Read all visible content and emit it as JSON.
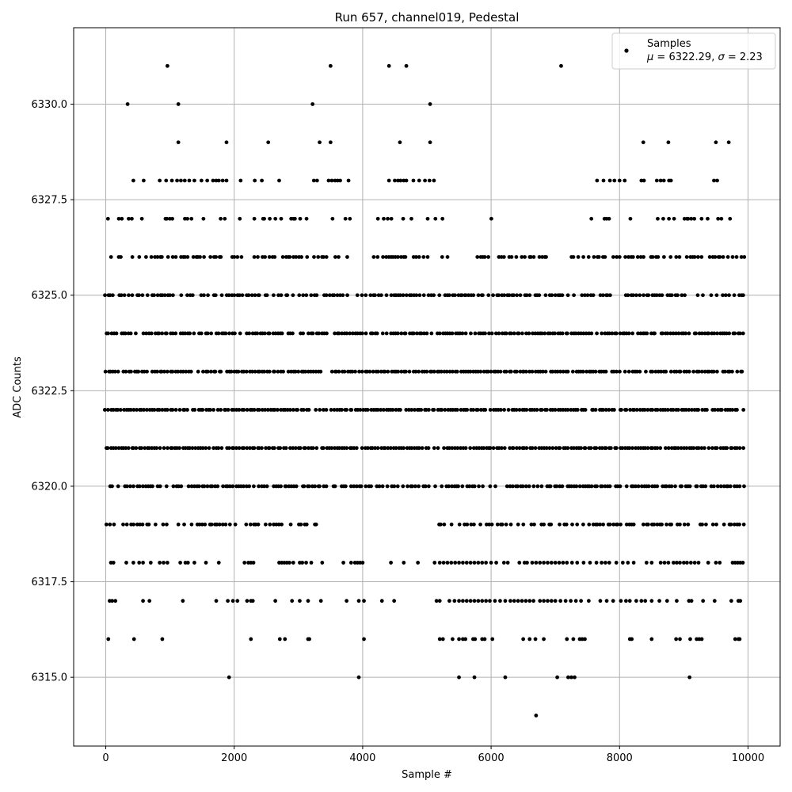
{
  "chart_data": {
    "type": "scatter",
    "title": "Run 657, channel019, Pedestal",
    "xlabel": "Sample #",
    "ylabel": "ADC Counts",
    "xlim": [
      -500,
      10500
    ],
    "ylim": [
      6313.2,
      6332.0
    ],
    "xticks": [
      0,
      2000,
      4000,
      6000,
      8000,
      10000
    ],
    "xtick_labels": [
      "0",
      "2000",
      "4000",
      "6000",
      "8000",
      "10000"
    ],
    "yticks": [
      6315.0,
      6317.5,
      6320.0,
      6322.5,
      6325.0,
      6327.5,
      6330.0
    ],
    "ytick_labels": [
      "6315.0",
      "6317.5",
      "6320.0",
      "6322.5",
      "6325.0",
      "6327.5",
      "6330.0"
    ],
    "grid": true,
    "legend_position": "top-right",
    "point_color": "#000000",
    "series": [
      {
        "name": "Samples",
        "legend_stats": "μ = 6322.29, σ = 2.23",
        "levels": [
          {
            "y": 6314,
            "x": [
              6700
            ]
          },
          {
            "y": 6315,
            "x": [
              1920,
              3940,
              5500,
              5740,
              6220,
              7030,
              7200,
              7250,
              7300,
              9090
            ]
          },
          {
            "y": 6316,
            "x": [
              40,
              440,
              880,
              2260,
              2710,
              2790,
              3150,
              3170,
              4020,
              5200,
              5250,
              5400,
              5500,
              5560,
              5600,
              5720,
              5750,
              5860,
              5900,
              6020,
              6500,
              6600,
              6690,
              6820,
              7180,
              7280,
              7380,
              7420,
              7460,
              8160,
              8190,
              8500,
              8880,
              8940,
              9100,
              9200,
              9240,
              9280,
              9800,
              9850,
              9870
            ]
          },
          {
            "y": 6317,
            "x": [
              60,
              100,
              150,
              580,
              680,
              1200,
              1720,
              1900,
              1980,
              2050,
              2200,
              2260,
              2290,
              2640,
              2900,
              3020,
              3150,
              3350,
              3750,
              3940,
              4020,
              4300,
              4490,
              5150,
              5200,
              5350,
              5430,
              5500,
              5560,
              5620,
              5680,
              5740,
              5800,
              5860,
              5920,
              5980,
              6060,
              6140,
              6220,
              6300,
              6360,
              6420,
              6480,
              6540,
              6600,
              6660,
              6760,
              6820,
              6880,
              6940,
              7000,
              7080,
              7160,
              7240,
              7320,
              7400,
              7520,
              7700,
              7800,
              7900,
              8020,
              8100,
              8160,
              8260,
              8340,
              8400,
              8500,
              8620,
              8740,
              8890,
              9080,
              9120,
              9300,
              9480,
              9740,
              9850,
              9880
            ]
          },
          {
            "y": 6318,
            "x": [
              80,
              120,
              320,
              430,
              520,
              580,
              700,
              840,
              900,
              960,
              1160,
              1240,
              1280,
              1380,
              1560,
              1760,
              2160,
              2220,
              2260,
              2300,
              2700,
              2740,
              2780,
              2820,
              2860,
              2920,
              3020,
              3060,
              3120,
              3200,
              3370,
              3700,
              3820,
              3880,
              3920,
              3960,
              4000,
              4440,
              4640,
              4860,
              5120,
              5200,
              5260,
              5320,
              5380,
              5440,
              5500,
              5560,
              5620,
              5680,
              5740,
              5800,
              5860,
              5920,
              6000,
              6080,
              6200,
              6260,
              6440,
              6520,
              6560,
              6640,
              6700,
              6760,
              6820,
              6880,
              6940,
              7000,
              7060,
              7120,
              7180,
              7260,
              7340,
              7440,
              7540,
              7640,
              7720,
              7780,
              7840,
              7950,
              8050,
              8130,
              8220,
              8420,
              8500,
              8640,
              8700,
              8760,
              8840,
              8890,
              8940,
              9000,
              9050,
              9110,
              9170,
              9230,
              9380,
              9500,
              9560,
              9760,
              9800,
              9840,
              9880,
              9920
            ]
          },
          {
            "y": 6330,
            "x": [
              340,
              1130,
              3220,
              5050
            ]
          },
          {
            "y": 6331,
            "x": [
              960,
              3500,
              4410,
              4680,
              7090
            ]
          },
          {
            "y": 6329,
            "x": [
              1130,
              1880,
              2530,
              3330,
              3500,
              4580,
              5050,
              8370,
              8760,
              9500,
              9700
            ]
          },
          {
            "y": 6328,
            "x": [
              430,
              590,
              840,
              940,
              1030,
              1110,
              1170,
              1230,
              1300,
              1380,
              1490,
              1580,
              1670,
              1720,
              1760,
              1820,
              1880,
              2100,
              2320,
              2430,
              2700,
              3240,
              3290,
              3470,
              3520,
              3570,
              3610,
              3650,
              3780,
              4410,
              4500,
              4550,
              4590,
              4640,
              4680,
              4790,
              4880,
              4970,
              5040,
              5110,
              7650,
              7750,
              7850,
              7920,
              8000,
              8080,
              8340,
              8380,
              8580,
              8640,
              8690,
              8770,
              8800,
              9470,
              9520
            ]
          }
        ],
        "dense_levels": [
          {
            "y": 6319,
            "ranges": [
              [
                0,
                1000
              ],
              [
                1100,
                2400
              ],
              [
                2450,
                3350
              ],
              [
                5100,
                9950
              ]
            ],
            "density": 0.55
          },
          {
            "y": 6320,
            "ranges": [
              [
                60,
                9950
              ]
            ],
            "density": 0.75
          },
          {
            "y": 6321,
            "ranges": [
              [
                0,
                9950
              ]
            ],
            "density": 0.95
          },
          {
            "y": 6322,
            "ranges": [
              [
                0,
                9950
              ]
            ],
            "density": 0.95
          },
          {
            "y": 6323,
            "ranges": [
              [
                0,
                9950
              ]
            ],
            "density": 0.9
          },
          {
            "y": 6324,
            "ranges": [
              [
                0,
                9950
              ]
            ],
            "density": 0.85
          },
          {
            "y": 6325,
            "ranges": [
              [
                0,
                5600
              ],
              [
                5600,
                7200
              ],
              [
                7300,
                9950
              ]
            ],
            "density": 0.75
          },
          {
            "y": 6326,
            "ranges": [
              [
                0,
                5350
              ],
              [
                5750,
                7100
              ],
              [
                7250,
                9950
              ]
            ],
            "density": 0.6
          },
          {
            "y": 6327,
            "ranges": [
              [
                0,
                5350
              ],
              [
                5950,
                6100
              ],
              [
                7400,
                9950
              ]
            ],
            "density": 0.35
          }
        ]
      }
    ]
  }
}
